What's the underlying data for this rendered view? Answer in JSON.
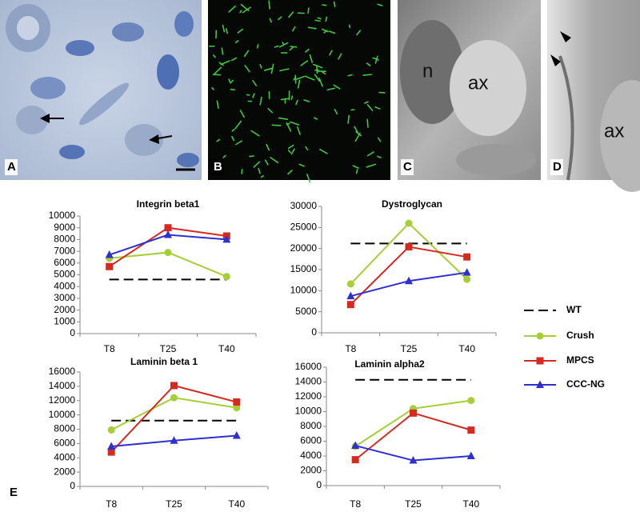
{
  "panels": [
    {
      "label": "A"
    },
    {
      "label": "B"
    },
    {
      "label": "C",
      "annotations": [
        "n",
        "ax"
      ]
    },
    {
      "label": "D",
      "annotations": [
        "ax"
      ]
    }
  ],
  "figure_label": "E",
  "chart_data": [
    {
      "type": "line",
      "title": "Integrin beta1",
      "categories": [
        "T8",
        "T25",
        "T40"
      ],
      "ylim": [
        0,
        10000
      ],
      "yticks": [
        0,
        1000,
        2000,
        3000,
        4000,
        5000,
        6000,
        7000,
        8000,
        9000,
        10000
      ],
      "series": [
        {
          "name": "WT",
          "color": "#000000",
          "dashed": true,
          "marker": "none",
          "values": [
            4600,
            4600,
            4600
          ]
        },
        {
          "name": "Crush",
          "color": "#a5cf35",
          "marker": "circle",
          "values": [
            6400,
            6900,
            4850
          ]
        },
        {
          "name": "MPCS",
          "color": "#d42a20",
          "marker": "square",
          "values": [
            5700,
            9000,
            8300
          ]
        },
        {
          "name": "CCC-NG",
          "color": "#2f2fd0",
          "marker": "triangle",
          "values": [
            6700,
            8400,
            8000
          ]
        }
      ]
    },
    {
      "type": "line",
      "title": "Dystroglycan",
      "categories": [
        "T8",
        "T25",
        "T40"
      ],
      "ylim": [
        0,
        30000
      ],
      "yticks": [
        0,
        5000,
        10000,
        15000,
        20000,
        25000,
        30000
      ],
      "series": [
        {
          "name": "WT",
          "color": "#000000",
          "dashed": true,
          "marker": "none",
          "values": [
            21200,
            21200,
            21200
          ]
        },
        {
          "name": "Crush",
          "color": "#a5cf35",
          "marker": "circle",
          "values": [
            11600,
            26000,
            12700
          ]
        },
        {
          "name": "MPCS",
          "color": "#d42a20",
          "marker": "square",
          "values": [
            6700,
            20400,
            18000
          ]
        },
        {
          "name": "CCC-NG",
          "color": "#2f2fd0",
          "marker": "triangle",
          "values": [
            8700,
            12300,
            14300
          ]
        }
      ]
    },
    {
      "type": "line",
      "title": "Laminin beta 1",
      "categories": [
        "T8",
        "T25",
        "T40"
      ],
      "ylim": [
        0,
        16000
      ],
      "yticks": [
        0,
        2000,
        4000,
        6000,
        8000,
        10000,
        12000,
        14000,
        16000
      ],
      "series": [
        {
          "name": "WT",
          "color": "#000000",
          "dashed": true,
          "marker": "none",
          "values": [
            9200,
            9200,
            9200
          ]
        },
        {
          "name": "Crush",
          "color": "#a5cf35",
          "marker": "circle",
          "values": [
            7900,
            12400,
            11000
          ]
        },
        {
          "name": "MPCS",
          "color": "#d42a20",
          "marker": "square",
          "values": [
            4800,
            14100,
            11800
          ]
        },
        {
          "name": "CCC-NG",
          "color": "#2f2fd0",
          "marker": "triangle",
          "values": [
            5600,
            6400,
            7100
          ]
        }
      ]
    },
    {
      "type": "line",
      "title": "Laminin alpha2",
      "categories": [
        "T8",
        "T25",
        "T40"
      ],
      "ylim": [
        0,
        16000
      ],
      "yticks": [
        0,
        2000,
        4000,
        6000,
        8000,
        10000,
        12000,
        14000,
        16000
      ],
      "series": [
        {
          "name": "WT",
          "color": "#000000",
          "dashed": true,
          "marker": "none",
          "values": [
            14300,
            14300,
            14300
          ]
        },
        {
          "name": "Crush",
          "color": "#a5cf35",
          "marker": "circle",
          "values": [
            5300,
            10400,
            11500
          ]
        },
        {
          "name": "MPCS",
          "color": "#d42a20",
          "marker": "square",
          "values": [
            3500,
            9800,
            7500
          ]
        },
        {
          "name": "CCC-NG",
          "color": "#2f2fd0",
          "marker": "triangle",
          "values": [
            5400,
            3400,
            4000
          ]
        }
      ]
    }
  ]
}
